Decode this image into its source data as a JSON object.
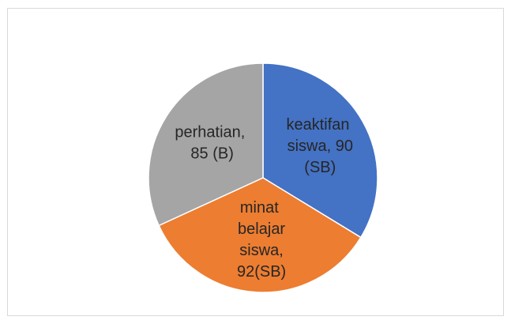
{
  "chart_data": {
    "type": "pie",
    "values": [
      90,
      92,
      85
    ],
    "value_labels": [
      "keaktifan siswa, 90 (SB)",
      "minat belajar siswa, 92(SB)",
      "perhatian, 85 (B)"
    ],
    "colors": [
      "#4472c4",
      "#ed7d31",
      "#a5a5a5"
    ]
  }
}
